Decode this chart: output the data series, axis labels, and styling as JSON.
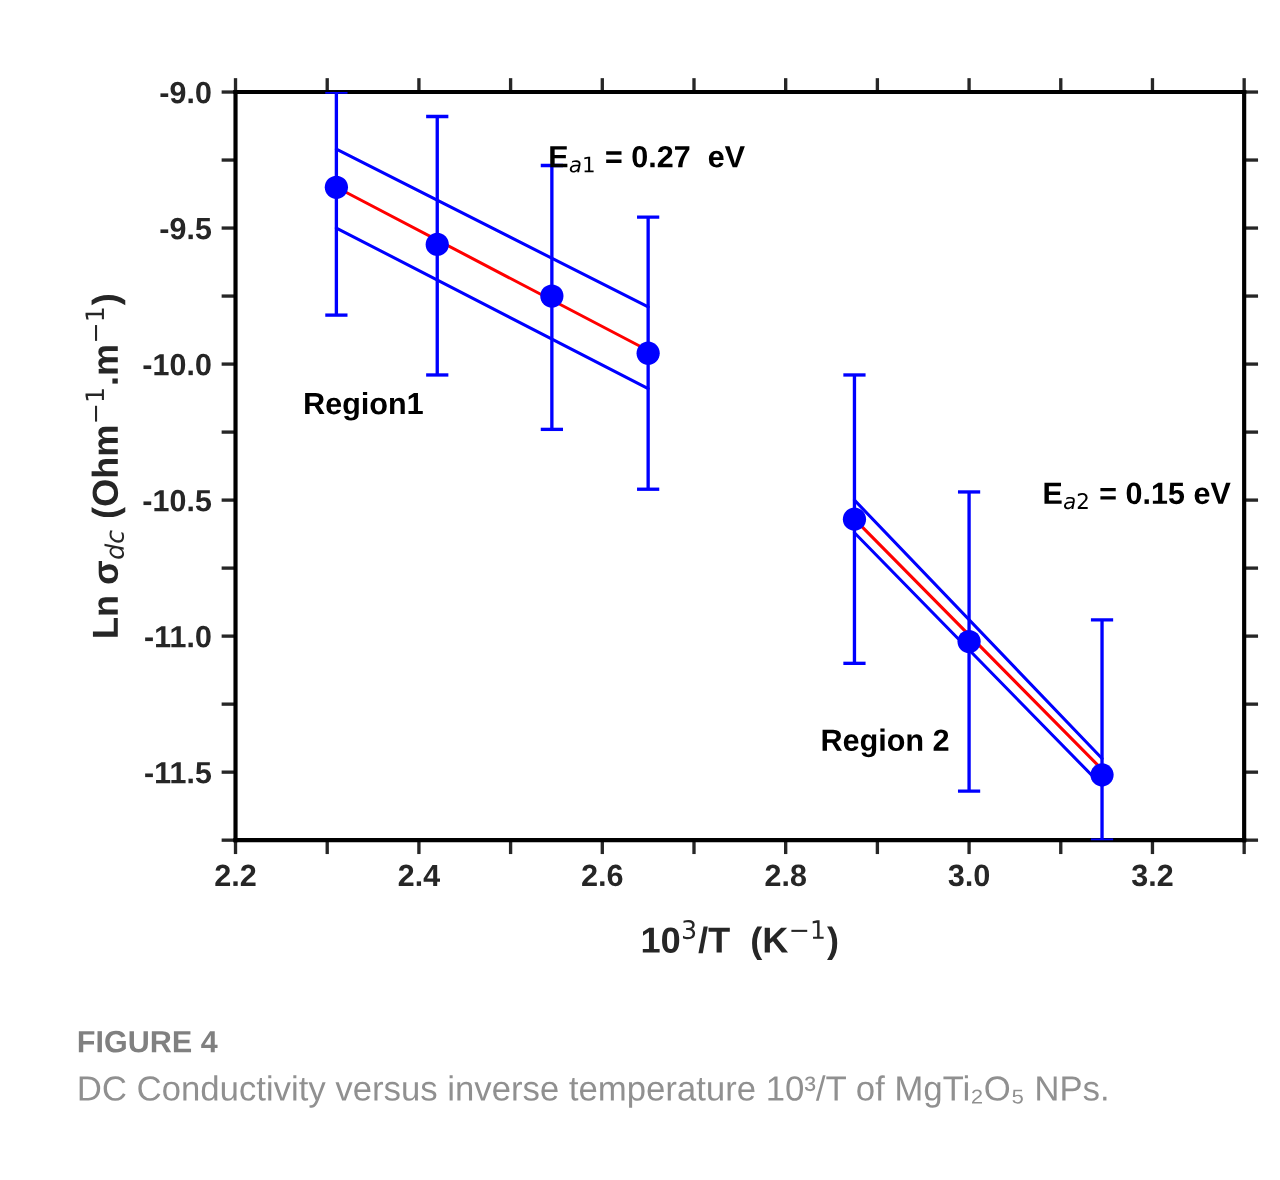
{
  "chart_data": {
    "type": "scatter",
    "xlabel": "10$^{3}$/T  (K$^{−1}$)",
    "ylabel": "Ln σ$_{dc}$ (Ohm$^{−1}$.m$^{−1}$)",
    "xlim": [
      2.2,
      3.3
    ],
    "ylim": [
      -11.75,
      -9.0
    ],
    "xticks": [
      2.2,
      {
        "value": 2.3,
        "label": null
      },
      2.4,
      {
        "value": 2.5,
        "label": null
      },
      2.6,
      {
        "value": 2.7,
        "label": null
      },
      2.8,
      {
        "value": 2.9,
        "label": null
      },
      {
        "value": 3.0,
        "label": "3.0"
      },
      {
        "value": 3.1,
        "label": null
      },
      3.2,
      {
        "value": 3.3,
        "label": null
      }
    ],
    "yticks": [
      {
        "value": -9.0,
        "label": "-9.0"
      },
      {
        "value": -9.25,
        "label": null
      },
      -9.5,
      {
        "value": -9.75,
        "label": null
      },
      {
        "value": -10.0,
        "label": "-10.0"
      },
      {
        "value": -10.25,
        "label": null
      },
      -10.5,
      {
        "value": -10.75,
        "label": null
      },
      {
        "value": -11.0,
        "label": "-11.0"
      },
      {
        "value": -11.25,
        "label": null
      },
      -11.5,
      {
        "value": -11.75,
        "label": null
      }
    ],
    "grid": false,
    "legend": false,
    "series": [
      {
        "color": "#0000ff",
        "marker": "circle",
        "x": [
          2.31,
          2.42,
          2.545,
          2.65,
          2.875,
          3.0,
          3.145
        ],
        "values": [
          -9.35,
          -9.56,
          -9.75,
          -9.96,
          -10.57,
          -11.02,
          -11.51
        ],
        "errors": [
          [
            -9.82,
            -9.0
          ],
          [
            -10.04,
            -9.09
          ],
          [
            -10.24,
            -9.27
          ],
          [
            -10.46,
            -9.46
          ],
          [
            -11.1,
            -10.04
          ],
          [
            -11.57,
            -10.47
          ],
          [
            -11.75,
            -10.94
          ]
        ]
      },
      {
        "type": "line",
        "color": "#ff0000",
        "x": [
          2.31,
          2.65
        ],
        "values": [
          -9.35,
          -9.95
        ]
      },
      {
        "type": "line",
        "color": "#0000ff",
        "x": [
          2.31,
          2.65
        ],
        "values": [
          -9.21,
          -9.79
        ]
      },
      {
        "type": "line",
        "color": "#0000ff",
        "x": [
          2.31,
          2.65
        ],
        "values": [
          -9.5,
          -10.09
        ]
      },
      {
        "type": "line",
        "color": "#ff0000",
        "x": [
          2.875,
          3.145
        ],
        "values": [
          -10.57,
          -11.49
        ]
      },
      {
        "type": "line",
        "color": "#0000ff",
        "x": [
          2.875,
          3.145
        ],
        "values": [
          -10.5,
          -11.45
        ]
      },
      {
        "type": "line",
        "color": "#0000ff",
        "x": [
          2.875,
          3.145
        ],
        "values": [
          -10.62,
          -11.55
        ]
      }
    ],
    "annotations": [
      "E$_{a1}$ = 0.27  eV",
      "E$_{a2}$ = 0.15 eV",
      "Region1",
      "Region 2",
      "FIGURE 4",
      "DC Conductivity versus inverse temperature 10³/T of MgTi₂O₅ NPs."
    ]
  }
}
